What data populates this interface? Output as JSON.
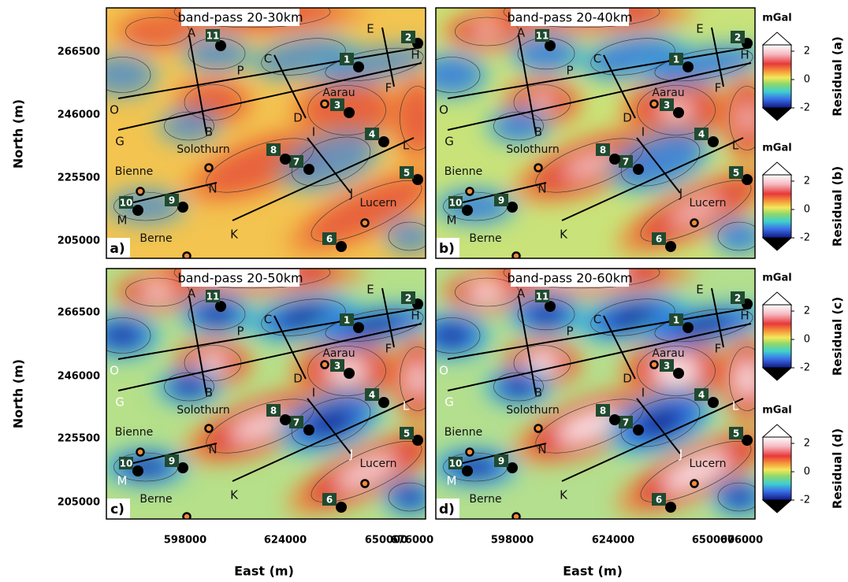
{
  "panels": [
    {
      "label": "a)",
      "title": "band-pass 20-30km",
      "colorbar": {
        "unit": "mGal",
        "label": "Residual (a)",
        "ticks": [
          "2",
          "0",
          "-2"
        ]
      }
    },
    {
      "label": "b)",
      "title": "band-pass 20-40km",
      "colorbar": {
        "unit": "mGal",
        "label": "Residual (b)",
        "ticks": [
          "2",
          "0",
          "-2"
        ]
      }
    },
    {
      "label": "c)",
      "title": "band-pass 20-50km",
      "colorbar": {
        "unit": "mGal",
        "label": "Residual (c)",
        "ticks": [
          "2",
          "0",
          "-2"
        ]
      }
    },
    {
      "label": "d)",
      "title": "band-pass 20-60km",
      "colorbar": {
        "unit": "mGal",
        "label": "Residual (d)",
        "ticks": [
          "2",
          "0",
          "-2"
        ]
      }
    }
  ],
  "x_axis": {
    "label": "East (m)",
    "ticks": [
      "598000",
      "624000",
      "650000",
      "676000"
    ]
  },
  "y_axis": {
    "label": "North (m)",
    "ticks": [
      "266500",
      "246000",
      "225500",
      "205000"
    ]
  },
  "places": [
    "Aarau",
    "Solothurn",
    "Bienne",
    "Berne",
    "Lucern"
  ],
  "profile_letters": [
    "A",
    "B",
    "C",
    "D",
    "E",
    "F",
    "G",
    "H",
    "I",
    "J",
    "K",
    "L",
    "M",
    "N",
    "O",
    "P"
  ],
  "stations": [
    "1",
    "2",
    "3",
    "4",
    "5",
    "6",
    "7",
    "8",
    "9",
    "10",
    "11"
  ]
}
